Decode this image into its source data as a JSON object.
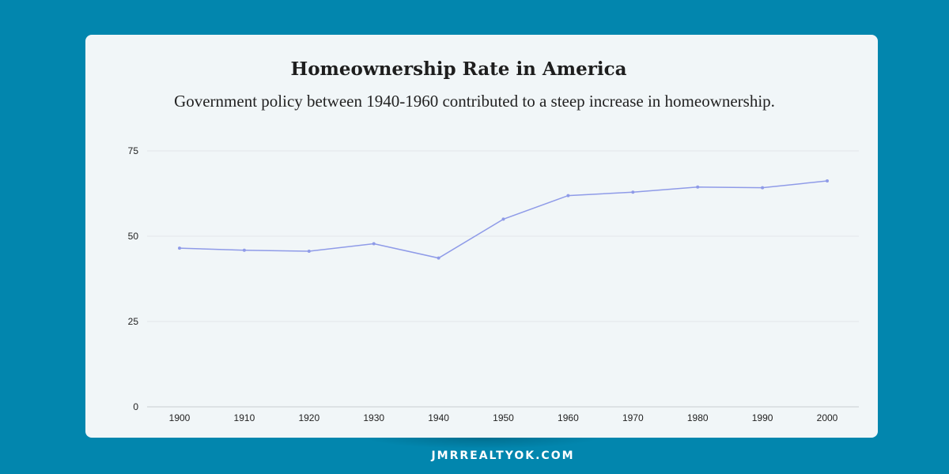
{
  "chart_data": {
    "type": "line",
    "title": "Homeownership Rate in America",
    "subtitle": "Government policy between 1940-1960 contributed to a steep increase in homeownership.",
    "xlabel": "",
    "ylabel": "",
    "categories": [
      "1900",
      "1910",
      "1920",
      "1930",
      "1940",
      "1950",
      "1960",
      "1970",
      "1980",
      "1990",
      "2000"
    ],
    "series": [
      {
        "values": [
          46.5,
          45.9,
          45.6,
          47.8,
          43.6,
          55.0,
          61.9,
          62.9,
          64.4,
          64.2,
          66.2
        ],
        "color": "#8f9be8"
      }
    ],
    "ylim": [
      0,
      75
    ],
    "yticks": [
      "0",
      "25",
      "50",
      "75"
    ],
    "grid": true,
    "legend": "none"
  },
  "footer": {
    "url": "JMRREALTYOK.COM"
  },
  "colors": {
    "background": "#0286ae",
    "card": "#f1f6f8",
    "gridline": "#e3e6ea",
    "axis_text": "#222222"
  }
}
